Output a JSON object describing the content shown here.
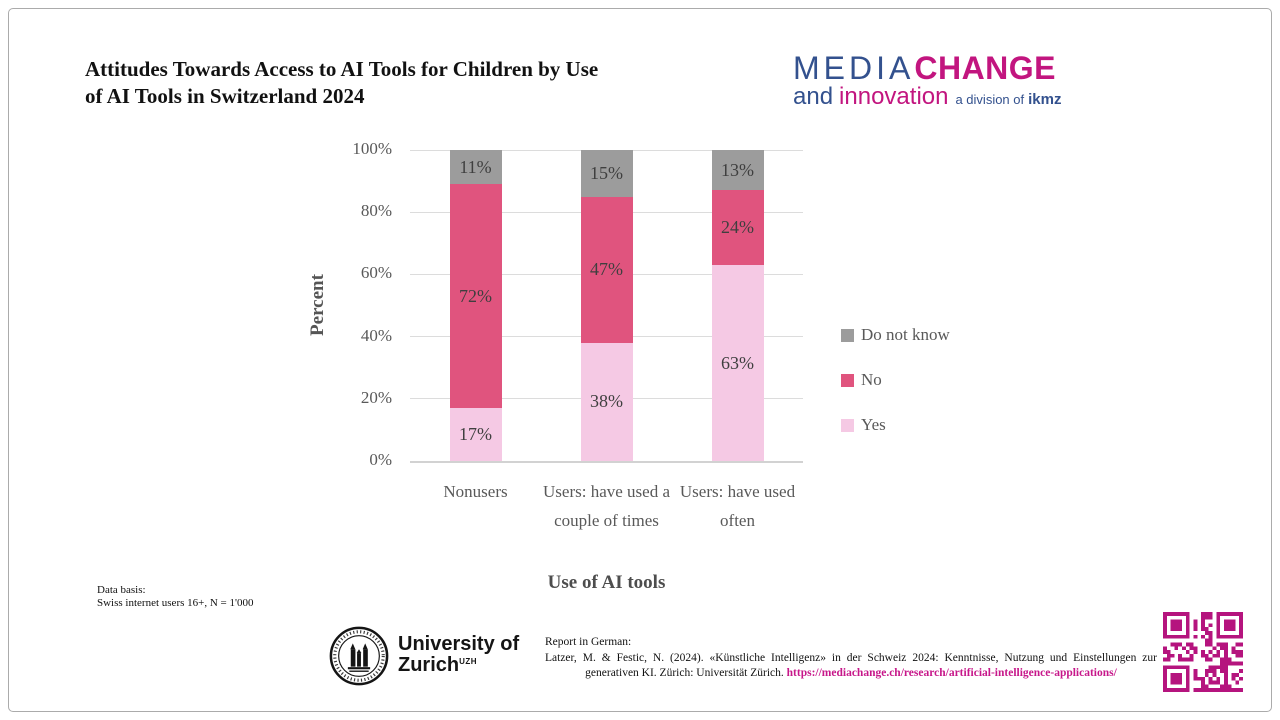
{
  "header": {
    "title_line1": "Attitudes Towards Access to AI Tools for Children by Use",
    "title_line2": "of AI Tools in Switzerland 2024"
  },
  "logo": {
    "media": "MEDIA",
    "change": "CHANGE",
    "and": "and",
    "innovation": "innovation",
    "division": "a division of",
    "ikmz": "ikmz",
    "blue": "#33518e",
    "magenta": "#c2157f"
  },
  "chart_data": {
    "type": "bar",
    "stacked": true,
    "categories": [
      "Nonusers",
      "Users: have used a couple of times",
      "Users: have used often"
    ],
    "series": [
      {
        "name": "Yes",
        "color": "#f5c9e4",
        "values": [
          17,
          38,
          63
        ]
      },
      {
        "name": "No",
        "color": "#e0547e",
        "values": [
          72,
          47,
          24
        ]
      },
      {
        "name": "Do not know",
        "color": "#9c9c9c",
        "values": [
          11,
          15,
          13
        ]
      }
    ],
    "value_suffix": "%",
    "ylabel": "Percent",
    "xlabel": "Use of AI tools",
    "ylim": [
      0,
      100
    ],
    "yticks": [
      "0%",
      "20%",
      "40%",
      "60%",
      "80%",
      "100%"
    ],
    "grid": true,
    "grid_color": "#dcdcdc",
    "legend_position": "right",
    "legend_order": [
      "Do not know",
      "No",
      "Yes"
    ]
  },
  "footnote": {
    "line1": "Data basis:",
    "line2": "Swiss internet users 16+, N = 1'000"
  },
  "uzh_logo": {
    "line1": "University of",
    "line2": "Zurich",
    "sup": "UZH"
  },
  "citation": {
    "intro": "Report in German:",
    "text": "Latzer, M. & Festic, N. (2024). «Künstliche Intelligenz» in der Schweiz 2024: Kenntnisse, Nutzung und Einstellungen zur generativen KI. Zürich: Universität Zürich.",
    "link": "https://mediachange.ch/research/artificial-intelligence-applications/",
    "link_color": "#c7178a"
  },
  "qr_color": "#b5147e"
}
